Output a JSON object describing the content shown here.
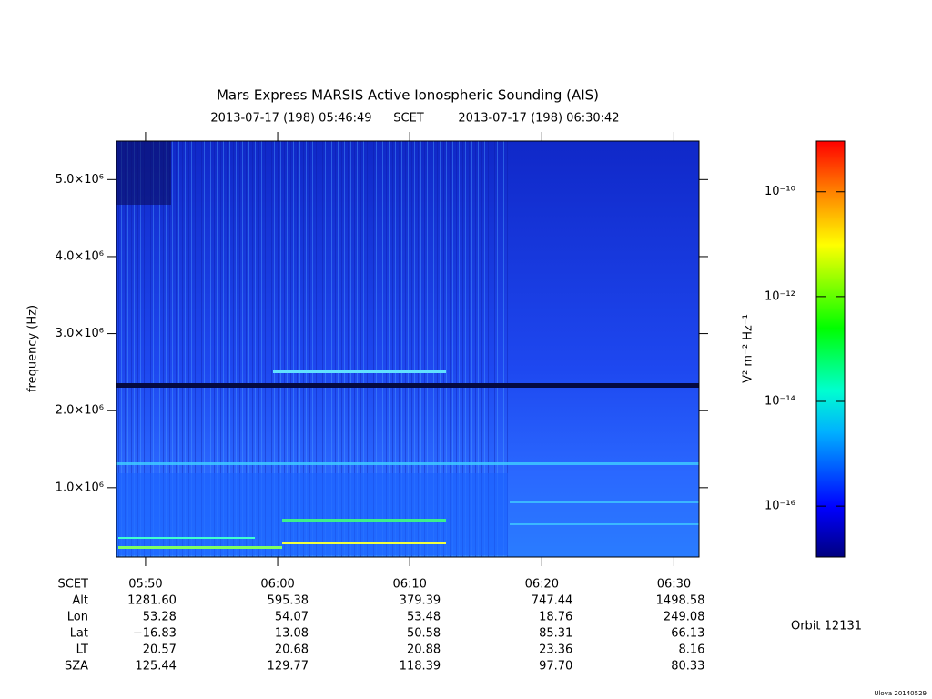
{
  "chart_data": {
    "type": "spectrogram",
    "title": "Mars Express MARSIS Active Ionospheric Sounding (AIS)",
    "time_start": "2013-07-17 (198) 05:46:49",
    "time_frame": "SCET",
    "time_end": "2013-07-17 (198) 06:30:42",
    "ylabel": "frequency (Hz)",
    "ylim": [
      100000,
      5500000
    ],
    "yticks": [
      {
        "value": 1000000,
        "label": "1.0×10⁶"
      },
      {
        "value": 2000000,
        "label": "2.0×10⁶"
      },
      {
        "value": 3000000,
        "label": "3.0×10⁶"
      },
      {
        "value": 4000000,
        "label": "4.0×10⁶"
      },
      {
        "value": 5000000,
        "label": "5.0×10⁶"
      }
    ],
    "xlim": [
      347.8,
      391.9
    ],
    "xticks": [
      {
        "value": 350,
        "label": "05:50"
      },
      {
        "value": 360,
        "label": "06:00"
      },
      {
        "value": 370,
        "label": "06:10"
      },
      {
        "value": 380,
        "label": "06:20"
      },
      {
        "value": 390,
        "label": "06:30"
      }
    ],
    "colorbar": {
      "label": "V² m⁻² Hz⁻¹",
      "scale": "log",
      "zlim": [
        1.07e-17,
        9.3e-10
      ],
      "zticks": [
        {
          "value": 1e-10,
          "label": "10⁻¹⁰"
        },
        {
          "value": 1e-12,
          "label": "10⁻¹²"
        },
        {
          "value": 1e-14,
          "label": "10⁻¹⁴"
        },
        {
          "value": 1e-16,
          "label": "10⁻¹⁶"
        }
      ]
    }
  },
  "ephemeris": {
    "time_label": "SCET",
    "rows": [
      {
        "label": "Alt",
        "values": [
          "1281.60",
          "595.38",
          "379.39",
          "747.44",
          "1498.58"
        ]
      },
      {
        "label": "Lon",
        "values": [
          "53.28",
          "54.07",
          "53.48",
          "18.76",
          "249.08"
        ]
      },
      {
        "label": "Lat",
        "values": [
          "−16.83",
          "13.08",
          "50.58",
          "85.31",
          "66.13"
        ]
      },
      {
        "label": "LT",
        "values": [
          "20.57",
          "20.68",
          "20.88",
          "23.36",
          "8.16"
        ]
      },
      {
        "label": "SZA",
        "values": [
          "125.44",
          "129.77",
          "118.39",
          "97.70",
          "80.33"
        ]
      }
    ]
  },
  "orbit": "Orbit 12131",
  "footer": "Ulova 20140529"
}
